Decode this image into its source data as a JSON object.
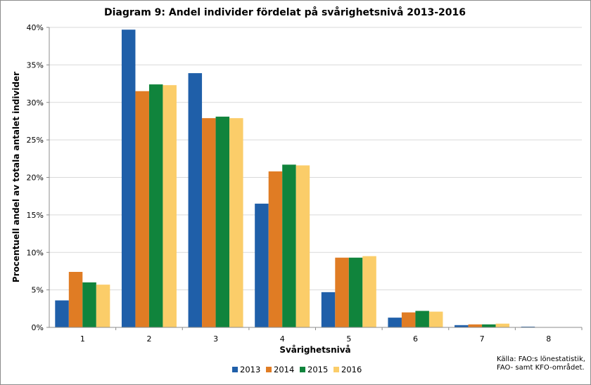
{
  "chart_data": {
    "type": "bar",
    "title": "Diagram 9: Andel individer fördelat på svårighetsnivå 2013-2016",
    "xlabel": "Svårighetsnivå",
    "ylabel": "Procentuell andel av totala antalet individer",
    "categories": [
      "1",
      "2",
      "3",
      "4",
      "5",
      "6",
      "7",
      "8"
    ],
    "ylim": [
      0,
      40
    ],
    "yticks": [
      0,
      5,
      10,
      15,
      20,
      25,
      30,
      35,
      40
    ],
    "ytick_labels": [
      "0%",
      "5%",
      "10%",
      "15%",
      "20%",
      "25%",
      "30%",
      "35%",
      "40%"
    ],
    "grid": true,
    "legend_position": "bottom",
    "series": [
      {
        "name": "2013",
        "color": "#1F5FA9",
        "values": [
          3.6,
          39.7,
          33.9,
          16.5,
          4.7,
          1.3,
          0.3,
          0.1
        ]
      },
      {
        "name": "2014",
        "color": "#E07C24",
        "values": [
          7.4,
          31.5,
          27.9,
          20.8,
          9.3,
          2.0,
          0.4,
          0.0
        ]
      },
      {
        "name": "2015",
        "color": "#10843C",
        "values": [
          6.0,
          32.4,
          28.1,
          21.7,
          9.3,
          2.2,
          0.4,
          0.0
        ]
      },
      {
        "name": "2016",
        "color": "#FBCD69",
        "values": [
          5.7,
          32.3,
          27.9,
          21.6,
          9.5,
          2.1,
          0.5,
          0.0
        ]
      }
    ],
    "source_note": [
      "Källa: FAO:s lönestatistik,",
      "FAO- samt KFO-området."
    ]
  }
}
